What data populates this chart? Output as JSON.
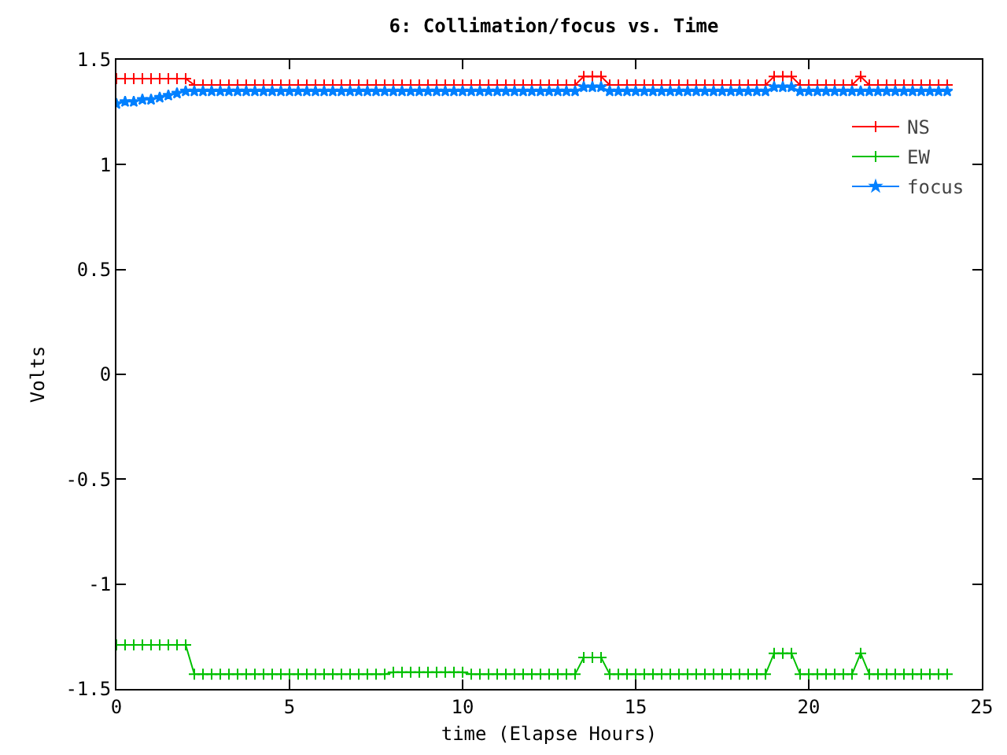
{
  "chart_data": {
    "type": "line",
    "title": "6: Collimation/focus vs. Time",
    "xlabel": "time (Elapse Hours)",
    "ylabel": "Volts",
    "x": [
      0,
      0.25,
      0.5,
      0.75,
      1,
      1.25,
      1.5,
      1.75,
      2,
      2.25,
      2.5,
      2.75,
      3,
      3.25,
      3.5,
      3.75,
      4,
      4.25,
      4.5,
      4.75,
      5,
      5.25,
      5.5,
      5.75,
      6,
      6.25,
      6.5,
      6.75,
      7,
      7.25,
      7.5,
      7.75,
      8,
      8.25,
      8.5,
      8.75,
      9,
      9.25,
      9.5,
      9.75,
      10,
      10.25,
      10.5,
      10.75,
      11,
      11.25,
      11.5,
      11.75,
      12,
      12.25,
      12.5,
      12.75,
      13,
      13.25,
      13.5,
      13.75,
      14,
      14.25,
      14.5,
      14.75,
      15,
      15.25,
      15.5,
      15.75,
      16,
      16.25,
      16.5,
      16.75,
      17,
      17.25,
      17.5,
      17.75,
      18,
      18.25,
      18.5,
      18.75,
      19,
      19.25,
      19.5,
      19.75,
      20,
      20.25,
      20.5,
      20.75,
      21,
      21.25,
      21.5,
      21.75,
      22,
      22.25,
      22.5,
      22.75,
      23,
      23.25,
      23.5,
      23.75,
      24
    ],
    "series": [
      {
        "name": "NS",
        "color": "#ff0000",
        "marker": "cross",
        "values": [
          1.41,
          1.41,
          1.41,
          1.41,
          1.41,
          1.41,
          1.41,
          1.41,
          1.41,
          1.38,
          1.38,
          1.38,
          1.38,
          1.38,
          1.38,
          1.38,
          1.38,
          1.38,
          1.38,
          1.38,
          1.38,
          1.38,
          1.38,
          1.38,
          1.38,
          1.38,
          1.38,
          1.38,
          1.38,
          1.38,
          1.38,
          1.38,
          1.38,
          1.38,
          1.38,
          1.38,
          1.38,
          1.38,
          1.38,
          1.38,
          1.38,
          1.38,
          1.38,
          1.38,
          1.38,
          1.38,
          1.38,
          1.38,
          1.38,
          1.38,
          1.38,
          1.38,
          1.38,
          1.38,
          1.42,
          1.42,
          1.42,
          1.38,
          1.38,
          1.38,
          1.38,
          1.38,
          1.38,
          1.38,
          1.38,
          1.38,
          1.38,
          1.38,
          1.38,
          1.38,
          1.38,
          1.38,
          1.38,
          1.38,
          1.38,
          1.38,
          1.42,
          1.42,
          1.42,
          1.38,
          1.38,
          1.38,
          1.38,
          1.38,
          1.38,
          1.38,
          1.42,
          1.38,
          1.38,
          1.38,
          1.38,
          1.38,
          1.38,
          1.38,
          1.38,
          1.38,
          1.38
        ]
      },
      {
        "name": "EW",
        "color": "#00c000",
        "marker": "cross",
        "values": [
          -1.29,
          -1.29,
          -1.29,
          -1.29,
          -1.29,
          -1.29,
          -1.29,
          -1.29,
          -1.29,
          -1.43,
          -1.43,
          -1.43,
          -1.43,
          -1.43,
          -1.43,
          -1.43,
          -1.43,
          -1.43,
          -1.43,
          -1.43,
          -1.43,
          -1.43,
          -1.43,
          -1.43,
          -1.43,
          -1.43,
          -1.43,
          -1.43,
          -1.43,
          -1.43,
          -1.43,
          -1.43,
          -1.42,
          -1.42,
          -1.42,
          -1.42,
          -1.42,
          -1.42,
          -1.42,
          -1.42,
          -1.42,
          -1.43,
          -1.43,
          -1.43,
          -1.43,
          -1.43,
          -1.43,
          -1.43,
          -1.43,
          -1.43,
          -1.43,
          -1.43,
          -1.43,
          -1.43,
          -1.35,
          -1.35,
          -1.35,
          -1.43,
          -1.43,
          -1.43,
          -1.43,
          -1.43,
          -1.43,
          -1.43,
          -1.43,
          -1.43,
          -1.43,
          -1.43,
          -1.43,
          -1.43,
          -1.43,
          -1.43,
          -1.43,
          -1.43,
          -1.43,
          -1.43,
          -1.33,
          -1.33,
          -1.33,
          -1.43,
          -1.43,
          -1.43,
          -1.43,
          -1.43,
          -1.43,
          -1.43,
          -1.33,
          -1.43,
          -1.43,
          -1.43,
          -1.43,
          -1.43,
          -1.43,
          -1.43,
          -1.43,
          -1.43,
          -1.43
        ]
      },
      {
        "name": "focus",
        "color": "#0080ff",
        "marker": "star",
        "values": [
          1.29,
          1.3,
          1.3,
          1.31,
          1.31,
          1.32,
          1.33,
          1.34,
          1.35,
          1.35,
          1.35,
          1.35,
          1.35,
          1.35,
          1.35,
          1.35,
          1.35,
          1.35,
          1.35,
          1.35,
          1.35,
          1.35,
          1.35,
          1.35,
          1.35,
          1.35,
          1.35,
          1.35,
          1.35,
          1.35,
          1.35,
          1.35,
          1.35,
          1.35,
          1.35,
          1.35,
          1.35,
          1.35,
          1.35,
          1.35,
          1.35,
          1.35,
          1.35,
          1.35,
          1.35,
          1.35,
          1.35,
          1.35,
          1.35,
          1.35,
          1.35,
          1.35,
          1.35,
          1.35,
          1.37,
          1.37,
          1.37,
          1.35,
          1.35,
          1.35,
          1.35,
          1.35,
          1.35,
          1.35,
          1.35,
          1.35,
          1.35,
          1.35,
          1.35,
          1.35,
          1.35,
          1.35,
          1.35,
          1.35,
          1.35,
          1.35,
          1.37,
          1.37,
          1.37,
          1.35,
          1.35,
          1.35,
          1.35,
          1.35,
          1.35,
          1.35,
          1.35,
          1.35,
          1.35,
          1.35,
          1.35,
          1.35,
          1.35,
          1.35,
          1.35,
          1.35,
          1.35
        ]
      }
    ],
    "xlim": [
      0,
      25
    ],
    "xticks": [
      0,
      5,
      10,
      15,
      20,
      25
    ],
    "ylim": [
      -1.5,
      1.5
    ],
    "yticks": [
      -1.5,
      -1,
      -0.5,
      0,
      0.5,
      1,
      1.5
    ],
    "legend": "top right",
    "grid": false,
    "line_style": "solid"
  }
}
